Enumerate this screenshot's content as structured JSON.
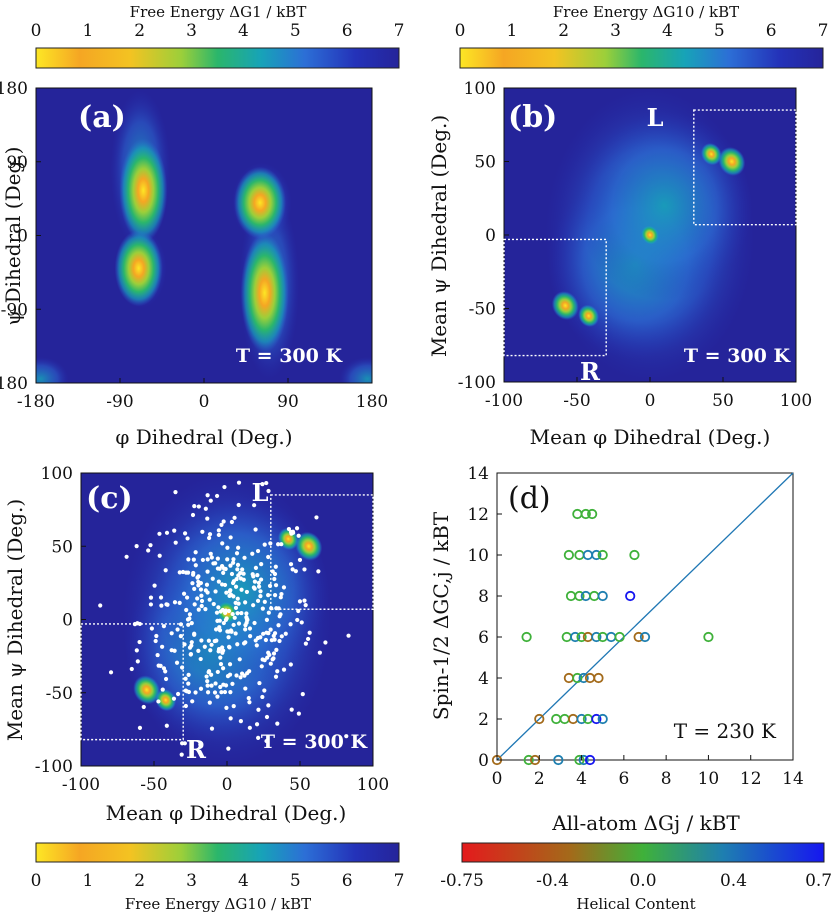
{
  "colors": {
    "energy_map": [
      "#fde725",
      "#f5a623",
      "#f3c322",
      "#9ccf3a",
      "#2bb66b",
      "#17a3b8",
      "#2c6fd6",
      "#2432b9",
      "#25249a"
    ],
    "helical_map": [
      "#e41a1c",
      "#a36a1a",
      "#3fb13a",
      "#1e7fb0",
      "#1616f0"
    ],
    "background": "#25249a",
    "diagonal": "#1f77b4"
  },
  "chart_data": [
    {
      "panel": "(a)",
      "type": "heatmap",
      "xlabel": "φ Dihedral (Deg.)",
      "ylabel": "ψ Dihedral (Deg.)",
      "xlim": [
        -180,
        180
      ],
      "ylim": [
        -180,
        180
      ],
      "xticks": [
        "-180",
        "-90",
        "0",
        "90",
        "180"
      ],
      "yticks": [
        "180",
        "90",
        "0",
        "-90",
        "-180"
      ],
      "annotation": "T = 300 K",
      "colorbar": {
        "title": "Free Energy ΔG1 / kBT",
        "ticks": [
          "0",
          "1",
          "2",
          "3",
          "4",
          "5",
          "6",
          "7"
        ],
        "range": [
          0,
          7
        ]
      },
      "basins": [
        {
          "x": -65,
          "y": 55,
          "depth": 1.0
        },
        {
          "x": -70,
          "y": -40,
          "depth": 1.0
        },
        {
          "x": 60,
          "y": 40,
          "depth": 0.5
        },
        {
          "x": 65,
          "y": -70,
          "depth": 1.5
        }
      ]
    },
    {
      "panel": "(b)",
      "type": "heatmap",
      "xlabel": "Mean φ Dihedral (Deg.)",
      "ylabel": "Mean ψ Dihedral (Deg.)",
      "xlim": [
        -100,
        100
      ],
      "ylim": [
        -100,
        100
      ],
      "xticks": [
        "-100",
        "-50",
        "0",
        "50",
        "100"
      ],
      "yticks": [
        "100",
        "50",
        "0",
        "-50",
        "-100"
      ],
      "annotation": "T = 300 K",
      "regions": [
        "L",
        "R"
      ],
      "colorbar": {
        "title": "Free Energy ΔG10 / kBT",
        "ticks": [
          "0",
          "1",
          "2",
          "3",
          "4",
          "5",
          "6",
          "7"
        ],
        "range": [
          0,
          7
        ]
      },
      "basins": [
        {
          "x": -58,
          "y": -48,
          "depth": 0.5
        },
        {
          "x": -42,
          "y": -55,
          "depth": 1.5
        },
        {
          "x": 0,
          "y": 0,
          "depth": 1.8
        },
        {
          "x": 42,
          "y": 55,
          "depth": 1.5
        },
        {
          "x": 56,
          "y": 50,
          "depth": 0.5
        }
      ]
    },
    {
      "panel": "(c)",
      "type": "heatmap",
      "xlabel": "Mean φ Dihedral (Deg.)",
      "ylabel": "Mean ψ Dihedral (Deg.)",
      "xlim": [
        -100,
        100
      ],
      "ylim": [
        -100,
        100
      ],
      "xticks": [
        "-100",
        "-50",
        "0",
        "50",
        "100"
      ],
      "yticks": [
        "100",
        "50",
        "0",
        "-50",
        "-100"
      ],
      "annotation": "T = 300 K",
      "regions": [
        "L",
        "R"
      ],
      "colorbar": {
        "title": "Free Energy ΔG10 / kBT",
        "ticks": [
          "0",
          "1",
          "2",
          "3",
          "4",
          "5",
          "6",
          "7"
        ],
        "range": [
          0,
          7
        ]
      },
      "basins": [
        {
          "x": -55,
          "y": -48,
          "depth": 0.5
        },
        {
          "x": -42,
          "y": -55,
          "depth": 1.5
        },
        {
          "x": 0,
          "y": 5,
          "depth": 1.5
        },
        {
          "x": 42,
          "y": 55,
          "depth": 1.5
        },
        {
          "x": 56,
          "y": 50,
          "depth": 0.5
        }
      ],
      "overlay": {
        "description": "white dots",
        "count": 420,
        "center": [
          0,
          0
        ],
        "spread": [
          30,
          40
        ]
      }
    },
    {
      "panel": "(d)",
      "type": "scatter",
      "xlabel": "All-atom ΔGj / kBT",
      "ylabel": "Spin-1/2 ΔGC,j / kBT",
      "xlim": [
        0,
        14
      ],
      "ylim": [
        0,
        14
      ],
      "xticks": [
        "0",
        "2",
        "4",
        "6",
        "8",
        "10",
        "12",
        "14"
      ],
      "yticks": [
        "0",
        "2",
        "4",
        "6",
        "8",
        "10",
        "12",
        "14"
      ],
      "annotation": "T = 230 K",
      "diagonal": true,
      "colorbar": {
        "title": "Helical Content",
        "ticks": [
          "-0.75",
          "-0.4",
          "0.0",
          "0.4",
          "0.75"
        ],
        "range": [
          -0.75,
          0.75
        ]
      },
      "points": [
        {
          "x": 0.0,
          "y": 0,
          "h": -0.3
        },
        {
          "x": 1.5,
          "y": 0,
          "h": 0.0
        },
        {
          "x": 1.8,
          "y": 0,
          "h": -0.2
        },
        {
          "x": 2.9,
          "y": 0,
          "h": 0.5
        },
        {
          "x": 3.9,
          "y": 0,
          "h": 0.0
        },
        {
          "x": 4.1,
          "y": 0,
          "h": 0.2
        },
        {
          "x": 4.4,
          "y": 0,
          "h": 0.7
        },
        {
          "x": 2.0,
          "y": 2,
          "h": -0.4
        },
        {
          "x": 2.8,
          "y": 2,
          "h": 0.0
        },
        {
          "x": 3.2,
          "y": 2,
          "h": 0.0
        },
        {
          "x": 3.6,
          "y": 2,
          "h": -0.2
        },
        {
          "x": 4.0,
          "y": 2,
          "h": 0.3
        },
        {
          "x": 4.3,
          "y": 2,
          "h": 0.0
        },
        {
          "x": 4.7,
          "y": 2,
          "h": 0.6
        },
        {
          "x": 5.0,
          "y": 2,
          "h": 0.5
        },
        {
          "x": 3.4,
          "y": 4,
          "h": -0.4
        },
        {
          "x": 3.8,
          "y": 4,
          "h": 0.0
        },
        {
          "x": 4.1,
          "y": 4,
          "h": 0.3
        },
        {
          "x": 4.4,
          "y": 4,
          "h": -0.2
        },
        {
          "x": 4.8,
          "y": 4,
          "h": -0.5
        },
        {
          "x": 1.4,
          "y": 6,
          "h": 0.0
        },
        {
          "x": 3.3,
          "y": 6,
          "h": 0.0
        },
        {
          "x": 3.7,
          "y": 6,
          "h": 0.3
        },
        {
          "x": 4.0,
          "y": 6,
          "h": 0.0
        },
        {
          "x": 4.3,
          "y": 6,
          "h": -0.3
        },
        {
          "x": 4.7,
          "y": 6,
          "h": 0.4
        },
        {
          "x": 5.0,
          "y": 6,
          "h": 0.0
        },
        {
          "x": 5.4,
          "y": 6,
          "h": 0.2
        },
        {
          "x": 5.8,
          "y": 6,
          "h": 0.0
        },
        {
          "x": 6.7,
          "y": 6,
          "h": -0.4
        },
        {
          "x": 7.0,
          "y": 6,
          "h": 0.5
        },
        {
          "x": 10.0,
          "y": 6,
          "h": 0.0
        },
        {
          "x": 3.5,
          "y": 8,
          "h": 0.0
        },
        {
          "x": 3.9,
          "y": 8,
          "h": 0.0
        },
        {
          "x": 4.2,
          "y": 8,
          "h": 0.2
        },
        {
          "x": 4.6,
          "y": 8,
          "h": 0.0
        },
        {
          "x": 5.0,
          "y": 8,
          "h": 0.3
        },
        {
          "x": 6.3,
          "y": 8,
          "h": 0.6
        },
        {
          "x": 3.4,
          "y": 10,
          "h": 0.0
        },
        {
          "x": 3.9,
          "y": 10,
          "h": 0.0
        },
        {
          "x": 4.3,
          "y": 10,
          "h": 0.2
        },
        {
          "x": 4.7,
          "y": 10,
          "h": 0.4
        },
        {
          "x": 5.0,
          "y": 10,
          "h": 0.0
        },
        {
          "x": 6.5,
          "y": 10,
          "h": 0.0
        },
        {
          "x": 3.8,
          "y": 12,
          "h": 0.0
        },
        {
          "x": 4.2,
          "y": 12,
          "h": 0.0
        },
        {
          "x": 4.5,
          "y": 12,
          "h": 0.0
        }
      ]
    }
  ]
}
